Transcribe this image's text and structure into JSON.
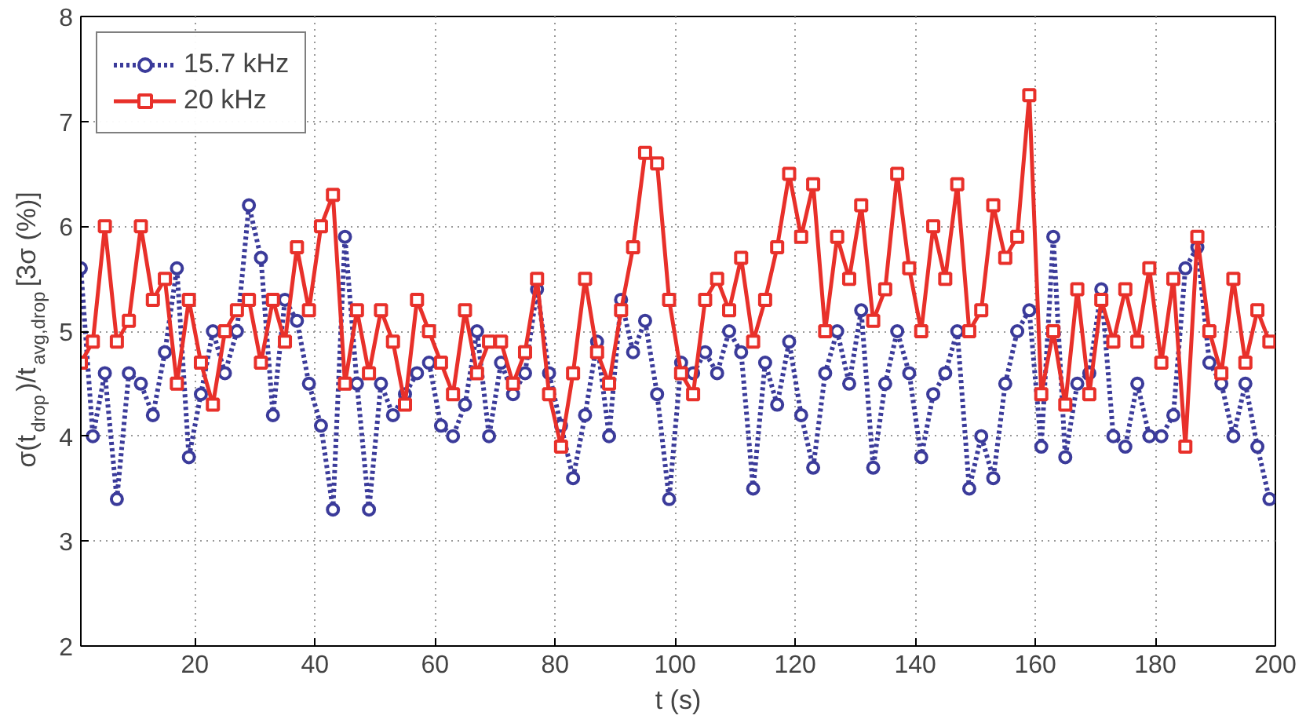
{
  "chart_data": {
    "type": "line",
    "xlabel": "t (s)",
    "ylabel": "σ(t$_{drop}$)/t$_{avg,drop}$ [3σ (%)]",
    "x": [
      1,
      3,
      5,
      7,
      9,
      11,
      13,
      15,
      17,
      19,
      21,
      23,
      25,
      27,
      29,
      31,
      33,
      35,
      37,
      39,
      41,
      43,
      45,
      47,
      49,
      51,
      53,
      55,
      57,
      59,
      61,
      63,
      65,
      67,
      69,
      71,
      73,
      75,
      77,
      79,
      81,
      83,
      85,
      87,
      89,
      91,
      93,
      95,
      97,
      99,
      101,
      103,
      105,
      107,
      109,
      111,
      113,
      115,
      117,
      119,
      121,
      123,
      125,
      127,
      129,
      131,
      133,
      135,
      137,
      139,
      141,
      143,
      145,
      147,
      149,
      151,
      153,
      155,
      157,
      159,
      161,
      163,
      165,
      167,
      169,
      171,
      173,
      175,
      177,
      179,
      181,
      183,
      185,
      187,
      189,
      191,
      193,
      195,
      197,
      199
    ],
    "series": [
      {
        "name": "15.7 kHz",
        "color": "#3b3b9a",
        "marker": "circle",
        "line_style": "dotted",
        "values": [
          5.6,
          4.0,
          4.6,
          3.4,
          4.6,
          4.5,
          4.2,
          4.8,
          5.6,
          3.8,
          4.4,
          5.0,
          4.6,
          5.0,
          6.2,
          5.7,
          4.2,
          5.3,
          5.1,
          4.5,
          4.1,
          3.3,
          5.9,
          4.5,
          3.3,
          4.5,
          4.2,
          4.4,
          4.6,
          4.7,
          4.1,
          4.0,
          4.3,
          5.0,
          4.0,
          4.7,
          4.4,
          4.6,
          5.4,
          4.6,
          4.1,
          3.6,
          4.2,
          4.9,
          4.0,
          5.3,
          4.8,
          5.1,
          4.4,
          3.4,
          4.7,
          4.6,
          4.8,
          4.6,
          5.0,
          4.8,
          3.5,
          4.7,
          4.3,
          4.9,
          4.2,
          3.7,
          4.6,
          5.0,
          4.5,
          5.2,
          3.7,
          4.5,
          5.0,
          4.6,
          3.8,
          4.4,
          4.6,
          5.0,
          3.5,
          4.0,
          3.6,
          4.5,
          5.0,
          5.2,
          3.9,
          5.9,
          3.8,
          4.5,
          4.6,
          5.4,
          4.0,
          3.9,
          4.5,
          4.0,
          4.0,
          4.2,
          5.6,
          5.8,
          4.7,
          4.5,
          4.0,
          4.5,
          3.9,
          3.4
        ]
      },
      {
        "name": "20 kHz",
        "color": "#e8302a",
        "marker": "square",
        "line_style": "solid",
        "values": [
          4.7,
          4.9,
          6.0,
          4.9,
          5.1,
          6.0,
          5.3,
          5.5,
          4.5,
          5.3,
          4.7,
          4.3,
          5.0,
          5.2,
          5.3,
          4.7,
          5.3,
          4.9,
          5.8,
          5.2,
          6.0,
          6.3,
          4.5,
          5.2,
          4.6,
          5.2,
          4.9,
          4.3,
          5.3,
          5.0,
          4.7,
          4.4,
          5.2,
          4.6,
          4.9,
          4.9,
          4.5,
          4.8,
          5.5,
          4.4,
          3.9,
          4.6,
          5.5,
          4.8,
          4.5,
          5.2,
          5.8,
          6.7,
          6.6,
          5.3,
          4.6,
          4.4,
          5.3,
          5.5,
          5.2,
          5.7,
          4.9,
          5.3,
          5.8,
          6.5,
          5.9,
          6.4,
          5.0,
          5.9,
          5.5,
          6.2,
          5.1,
          5.4,
          6.5,
          5.6,
          5.0,
          6.0,
          5.5,
          6.4,
          5.0,
          5.2,
          6.2,
          5.7,
          5.9,
          7.25,
          4.4,
          5.0,
          4.3,
          5.4,
          4.4,
          5.3,
          4.9,
          5.4,
          4.9,
          5.6,
          4.7,
          5.5,
          3.9,
          5.9,
          5.0,
          4.6,
          5.5,
          4.7,
          5.2,
          4.9
        ]
      }
    ],
    "xlim": [
      1,
      200
    ],
    "xticks": [
      20,
      40,
      60,
      80,
      100,
      120,
      140,
      160,
      180,
      200
    ],
    "ylim": [
      2,
      8
    ],
    "yticks": [
      2,
      3,
      4,
      5,
      6,
      7,
      8
    ],
    "grid": true,
    "legend": "top left"
  }
}
